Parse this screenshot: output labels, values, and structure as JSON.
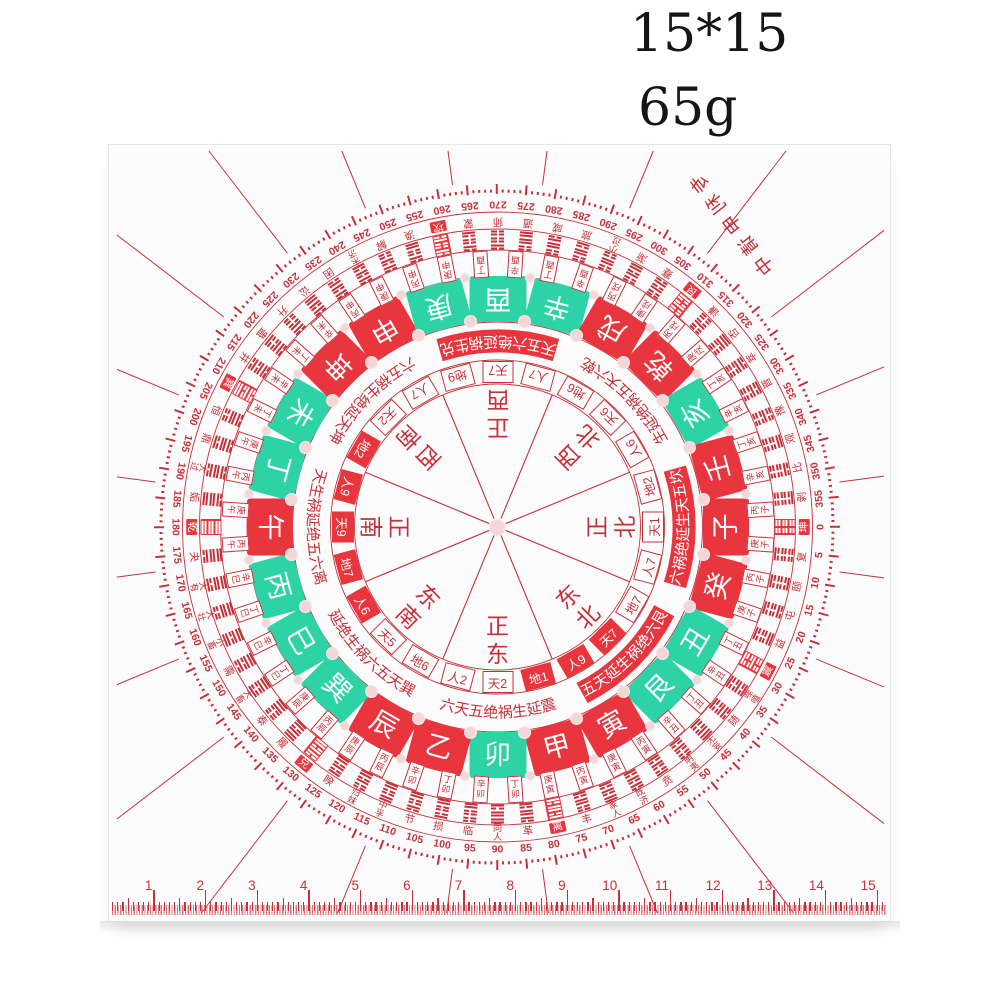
{
  "product": {
    "size_label": "15*15",
    "weight_label": "65g"
  },
  "brand_text": "专利申请中",
  "colors": {
    "red_line": "#c5313a",
    "cell_red": "#e8353e",
    "teal": "#2dd3a7",
    "dot_pink": "#f3d6d6",
    "title": "#151515"
  },
  "compass": {
    "directions": [
      {
        "angle": 0,
        "label": "正北"
      },
      {
        "angle": 45,
        "label": "东北"
      },
      {
        "angle": 90,
        "label": "正东"
      },
      {
        "angle": 135,
        "label": "东南"
      },
      {
        "angle": 180,
        "label": "正南"
      },
      {
        "angle": 225,
        "label": "西南"
      },
      {
        "angle": 270,
        "label": "正西"
      },
      {
        "angle": 315,
        "label": "西北"
      }
    ],
    "mountains": [
      {
        "name": "子",
        "teal": false,
        "num": "天1",
        "num_red": false,
        "fenjin": [
          "丙子",
          "庚子"
        ]
      },
      {
        "name": "癸",
        "teal": false,
        "num": "人7",
        "num_red": false,
        "fenjin": [
          "丙子",
          "庚子"
        ]
      },
      {
        "name": "丑",
        "teal": true,
        "num": "地7",
        "num_red": false,
        "fenjin": [
          "丁丑",
          "辛丑"
        ]
      },
      {
        "name": "艮",
        "teal": true,
        "num": "天7",
        "num_red": true,
        "fenjin": [
          "丁丑",
          "辛丑"
        ]
      },
      {
        "name": "寅",
        "teal": false,
        "num": "人9",
        "num_red": true,
        "fenjin": [
          "丙寅",
          "庚寅"
        ]
      },
      {
        "name": "甲",
        "teal": false,
        "num": "地1",
        "num_red": true,
        "fenjin": [
          "丙寅",
          "庚寅"
        ]
      },
      {
        "name": "卯",
        "teal": true,
        "num": "天2",
        "num_red": false,
        "fenjin": [
          "丁卯",
          "辛卯"
        ]
      },
      {
        "name": "乙",
        "teal": false,
        "num": "人2",
        "num_red": false,
        "fenjin": [
          "丁卯",
          "辛卯"
        ]
      },
      {
        "name": "辰",
        "teal": false,
        "num": "地6",
        "num_red": false,
        "fenjin": [
          "丙辰",
          "庚辰"
        ]
      },
      {
        "name": "巽",
        "teal": true,
        "num": "天5",
        "num_red": false,
        "fenjin": [
          "丙辰",
          "庚辰"
        ]
      },
      {
        "name": "巳",
        "teal": true,
        "num": "人6",
        "num_red": true,
        "fenjin": [
          "丁巳",
          "辛巳"
        ]
      },
      {
        "name": "丙",
        "teal": true,
        "num": "地7",
        "num_red": true,
        "fenjin": [
          "丁巳",
          "辛巳"
        ]
      },
      {
        "name": "午",
        "teal": false,
        "num": "天9",
        "num_red": true,
        "fenjin": [
          "丙午",
          "庚午"
        ]
      },
      {
        "name": "丁",
        "teal": true,
        "num": "人9",
        "num_red": true,
        "fenjin": [
          "丙午",
          "庚午"
        ]
      },
      {
        "name": "未",
        "teal": true,
        "num": "地2",
        "num_red": true,
        "fenjin": [
          "丁未",
          "辛未"
        ]
      },
      {
        "name": "坤",
        "teal": false,
        "num": "天2",
        "num_red": false,
        "fenjin": [
          "丁未",
          "辛未"
        ]
      },
      {
        "name": "申",
        "teal": false,
        "num": "人7",
        "num_red": false,
        "fenjin": [
          "丙申",
          "庚申"
        ]
      },
      {
        "name": "庚",
        "teal": true,
        "num": "地9",
        "num_red": false,
        "fenjin": [
          "丙申",
          "庚申"
        ]
      },
      {
        "name": "酉",
        "teal": true,
        "num": "天7",
        "num_red": false,
        "fenjin": [
          "丁酉",
          "辛酉"
        ]
      },
      {
        "name": "辛",
        "teal": true,
        "num": "人7",
        "num_red": false,
        "fenjin": [
          "丁酉",
          "辛酉"
        ]
      },
      {
        "name": "戌",
        "teal": false,
        "num": "地6",
        "num_red": false,
        "fenjin": [
          "丙戌",
          "庚戌"
        ]
      },
      {
        "name": "乾",
        "teal": false,
        "num": "天6",
        "num_red": false,
        "fenjin": [
          "丙戌",
          "庚戌"
        ]
      },
      {
        "name": "亥",
        "teal": true,
        "num": "人6",
        "num_red": false,
        "fenjin": [
          "丁亥",
          "辛亥"
        ]
      },
      {
        "name": "壬",
        "teal": false,
        "num": "地2",
        "num_red": false,
        "fenjin": [
          "丁亥",
          "辛亥"
        ]
      }
    ],
    "bazhai": [
      {
        "trigram": "坎",
        "angle": 0,
        "line": "五天生延绝祸六",
        "red": true
      },
      {
        "trigram": "艮",
        "angle": 45,
        "line": "六绝祸生延天五",
        "red": true
      },
      {
        "trigram": "震",
        "angle": 90,
        "line": "延生祸绝五天六",
        "red": false
      },
      {
        "trigram": "巽",
        "angle": 135,
        "line": "天五六祸生绝延",
        "red": false
      },
      {
        "trigram": "离",
        "angle": 180,
        "line": "六五绝延祸生天",
        "red": false
      },
      {
        "trigram": "坤",
        "angle": 225,
        "line": "天延绝生祸五六",
        "red": false
      },
      {
        "trigram": "兑",
        "angle": 270,
        "line": "生祸延绝六五天",
        "red": true
      },
      {
        "trigram": "乾",
        "angle": 315,
        "line": "六天五祸绝延生",
        "red": false
      }
    ],
    "hexagrams": {
      "start_angle": 5.625,
      "step": 5.625,
      "names": [
        "复",
        "颐",
        "屯",
        "益",
        "震",
        "噬嗑",
        "随",
        "无妄",
        "明夷",
        "贲",
        "既济",
        "家人",
        "丰",
        "离",
        "革",
        "同人",
        "临",
        "损",
        "节",
        "中孚",
        "归妹",
        "睽",
        "兑",
        "履",
        "泰",
        "大畜",
        "需",
        "小畜",
        "大壮",
        "大有",
        "夬",
        "乾",
        "姤",
        "大过",
        "鼎",
        "恒",
        "巽",
        "井",
        "蛊",
        "升",
        "讼",
        "困",
        "未济",
        "解",
        "涣",
        "坎",
        "蒙",
        "师",
        "遁",
        "咸",
        "旅",
        "小过",
        "渐",
        "蹇",
        "艮",
        "谦",
        "否",
        "萃",
        "晋",
        "豫",
        "观",
        "比",
        "剥",
        "坤"
      ],
      "pure_red": [
        "乾",
        "坤",
        "坎",
        "离",
        "震",
        "巽",
        "艮",
        "兑"
      ]
    },
    "degrees": {
      "min": 0,
      "max": 355,
      "label_step": 5,
      "tick_step": 1
    },
    "ruler": {
      "numbers": [
        1,
        2,
        3,
        4,
        5,
        6,
        7,
        8,
        9,
        10,
        11,
        12,
        13,
        14,
        15
      ]
    }
  }
}
